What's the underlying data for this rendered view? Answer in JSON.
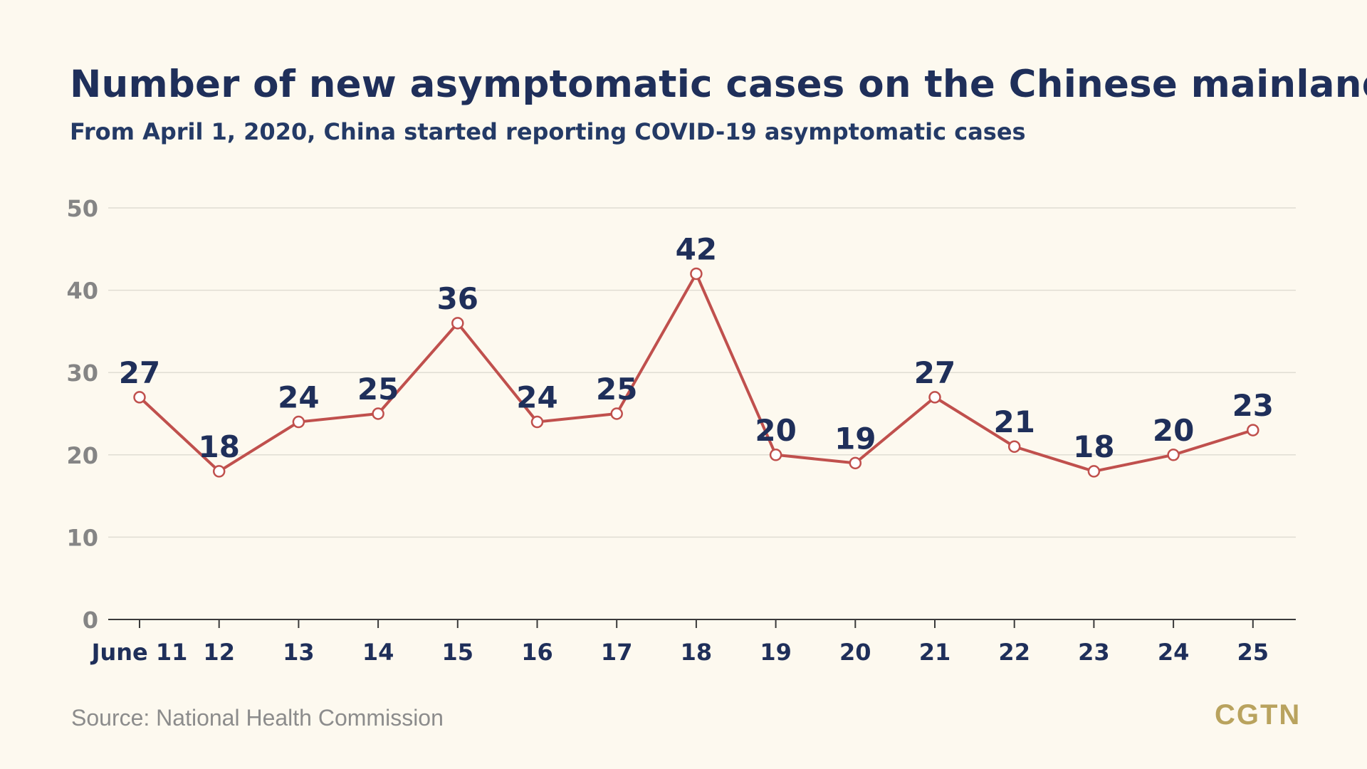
{
  "title": "Number of new asymptomatic cases on the Chinese mainland",
  "subtitle": "From April 1, 2020, China started reporting COVID-19 asymptomatic cases",
  "source": "Source: National Health Commission",
  "logo": "CGTN",
  "colors": {
    "background": "#fdf9ef",
    "title": "#1f2f5a",
    "line": "#c0504d",
    "grid": "#e0ddd3",
    "tick": "#858585",
    "logo": "#b9a35e"
  },
  "chart_data": {
    "type": "line",
    "title": "Number of new asymptomatic cases on the Chinese mainland",
    "xlabel": "",
    "ylabel": "",
    "categories": [
      "June 11",
      "12",
      "13",
      "14",
      "15",
      "16",
      "17",
      "18",
      "19",
      "20",
      "21",
      "22",
      "23",
      "24",
      "25"
    ],
    "series": [
      {
        "values": [
          27,
          18,
          24,
          25,
          36,
          24,
          25,
          42,
          20,
          19,
          27,
          21,
          18,
          20,
          23
        ]
      }
    ],
    "data_labels": [
      "27",
      "18",
      "24",
      "25",
      "36",
      "24",
      "25",
      "42",
      "20",
      "19",
      "27",
      "21",
      "18",
      "20",
      "23"
    ],
    "yticks": [
      0,
      10,
      20,
      30,
      40,
      50
    ],
    "ylim": [
      0,
      50
    ],
    "grid": true,
    "legend": "none"
  }
}
